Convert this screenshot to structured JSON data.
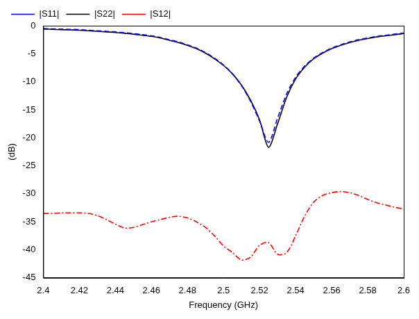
{
  "chart_data": {
    "type": "line",
    "x_label": "Frequency (GHz)",
    "y_label": "(dB)",
    "x": [
      2.4,
      2.405,
      2.41,
      2.415,
      2.42,
      2.425,
      2.43,
      2.435,
      2.44,
      2.445,
      2.45,
      2.455,
      2.46,
      2.465,
      2.47,
      2.475,
      2.48,
      2.485,
      2.49,
      2.495,
      2.5,
      2.505,
      2.51,
      2.515,
      2.52,
      2.525,
      2.53,
      2.535,
      2.54,
      2.545,
      2.55,
      2.555,
      2.56,
      2.565,
      2.57,
      2.575,
      2.58,
      2.585,
      2.59,
      2.595,
      2.6
    ],
    "series": [
      {
        "name": "|S11|",
        "color": "#0000ff",
        "line_style": "dashed",
        "values": [
          -0.5,
          -0.55,
          -0.6,
          -0.65,
          -0.7,
          -0.8,
          -0.9,
          -1.0,
          -1.1,
          -1.25,
          -1.4,
          -1.6,
          -1.8,
          -2.1,
          -2.5,
          -2.9,
          -3.4,
          -4.0,
          -4.8,
          -5.8,
          -7.0,
          -8.6,
          -10.7,
          -13.5,
          -17.0,
          -20.8,
          -16.5,
          -12.2,
          -9.2,
          -7.2,
          -5.8,
          -4.8,
          -4.0,
          -3.4,
          -2.9,
          -2.5,
          -2.2,
          -1.9,
          -1.7,
          -1.5,
          -1.3
        ]
      },
      {
        "name": "|S22|",
        "color": "#000000",
        "line_style": "solid",
        "values": [
          -0.6,
          -0.65,
          -0.7,
          -0.75,
          -0.8,
          -0.9,
          -1.0,
          -1.1,
          -1.2,
          -1.35,
          -1.5,
          -1.7,
          -1.9,
          -2.2,
          -2.6,
          -3.0,
          -3.5,
          -4.1,
          -4.9,
          -5.9,
          -7.1,
          -8.6,
          -10.6,
          -13.3,
          -16.8,
          -21.7,
          -17.5,
          -12.8,
          -9.5,
          -7.4,
          -5.9,
          -4.9,
          -4.1,
          -3.5,
          -3.0,
          -2.6,
          -2.3,
          -2.0,
          -1.8,
          -1.6,
          -1.4
        ]
      },
      {
        "name": "|S12|",
        "color": "#ff0000",
        "line_style": "dashdot",
        "values": [
          -33.5,
          -33.5,
          -33.4,
          -33.4,
          -33.4,
          -33.5,
          -33.9,
          -34.6,
          -35.4,
          -36.1,
          -36.0,
          -35.5,
          -35.0,
          -34.6,
          -34.2,
          -34.0,
          -34.3,
          -35.0,
          -36.0,
          -37.5,
          -39.3,
          -40.5,
          -41.8,
          -41.3,
          -39.2,
          -38.7,
          -40.8,
          -40.5,
          -37.5,
          -34.0,
          -31.5,
          -30.3,
          -29.8,
          -29.6,
          -29.8,
          -30.3,
          -31.0,
          -31.6,
          -32.0,
          -32.4,
          -32.7
        ]
      }
    ],
    "xlim": [
      2.4,
      2.6
    ],
    "xticks": [
      2.4,
      2.42,
      2.44,
      2.46,
      2.48,
      2.5,
      2.52,
      2.54,
      2.56,
      2.58,
      2.6
    ],
    "ylim": [
      -45,
      0
    ],
    "yticks": [
      -45,
      -40,
      -35,
      -30,
      -25,
      -20,
      -15,
      -10,
      -5,
      0
    ],
    "grid": false,
    "legend": "top"
  }
}
